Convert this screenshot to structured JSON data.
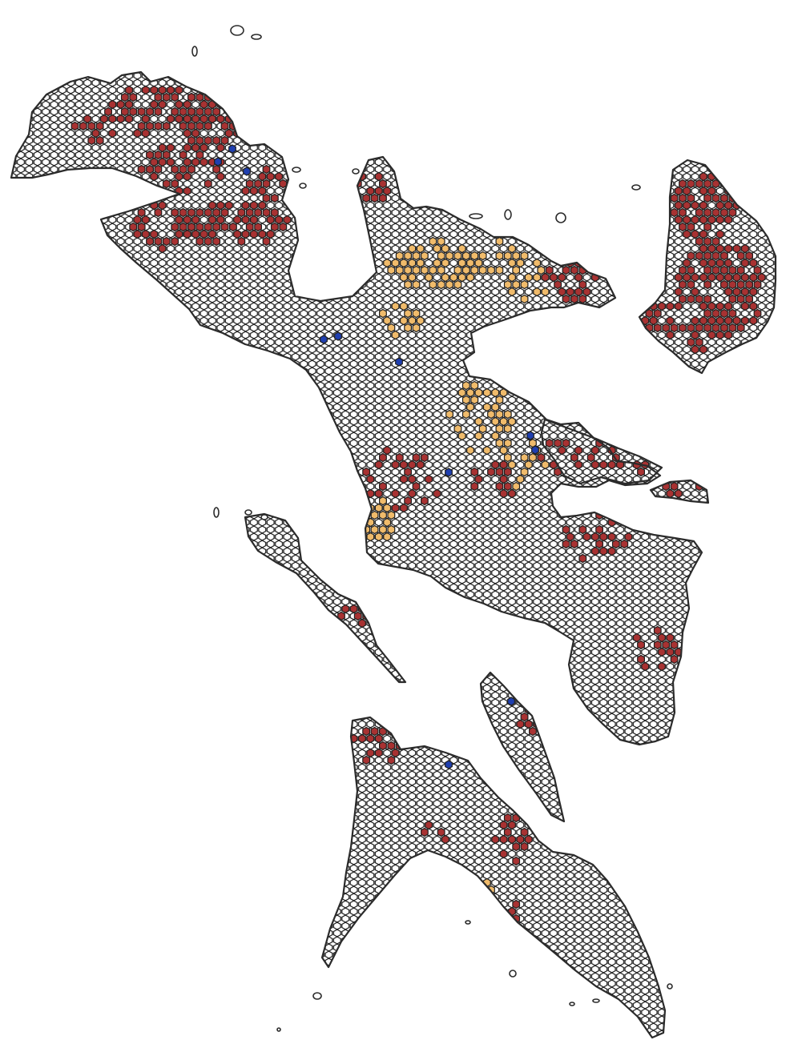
{
  "map": {
    "colors": {
      "background": "#ffffff",
      "hex_fill": "#ffffff",
      "hex_stroke": "#1f1f1f",
      "coastline": "#2b2b2b",
      "class_high": "#a83232",
      "class_medium": "#f0bb6b",
      "class_point": "#1f3fb0"
    },
    "cell_classes": [
      "none",
      "high",
      "medium",
      "point"
    ]
  }
}
